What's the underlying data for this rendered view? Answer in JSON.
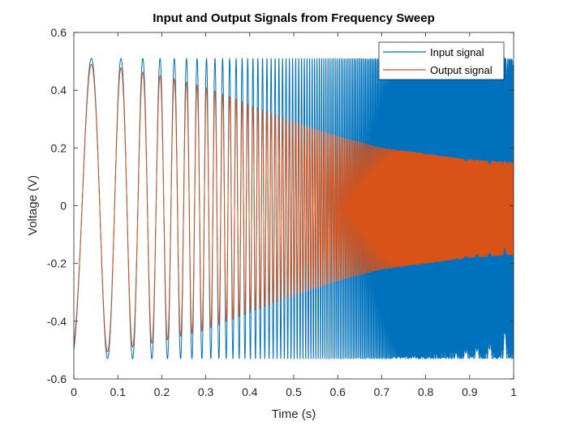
{
  "chart_data": {
    "type": "line",
    "title": "Input and Output Signals from Frequency Sweep",
    "xlabel": "Time (s)",
    "ylabel": "Voltage (V)",
    "xlim": [
      0,
      1
    ],
    "ylim": [
      -0.6,
      0.6
    ],
    "x_ticks": [
      "0",
      "0.1",
      "0.2",
      "0.3",
      "0.4",
      "0.5",
      "0.6",
      "0.7",
      "0.8",
      "0.9",
      "1"
    ],
    "y_ticks": [
      "-0.6",
      "-0.4",
      "-0.2",
      "0",
      "0.2",
      "0.4",
      "0.6"
    ],
    "grid": false,
    "legend_position": "top-right",
    "series": [
      {
        "name": "Input signal",
        "color": "#0072BD",
        "offset": -0.01,
        "envelope": {
          "t": [
            0,
            0.3,
            0.5,
            0.7,
            0.9,
            1.0
          ],
          "amp": [
            0.52,
            0.52,
            0.52,
            0.52,
            0.52,
            0.52
          ]
        }
      },
      {
        "name": "Output signal",
        "color": "#D95319",
        "offset": -0.01,
        "envelope": {
          "t": [
            0,
            0.06,
            0.1,
            0.2,
            0.3,
            0.4,
            0.5,
            0.6,
            0.7,
            0.8,
            0.9,
            1.0
          ],
          "amp": [
            0.5,
            0.5,
            0.49,
            0.46,
            0.42,
            0.36,
            0.3,
            0.25,
            0.21,
            0.19,
            0.17,
            0.16
          ]
        }
      }
    ],
    "sweep": {
      "f0_hz": 10,
      "f1_hz": 2000,
      "duration_s": 1
    }
  }
}
